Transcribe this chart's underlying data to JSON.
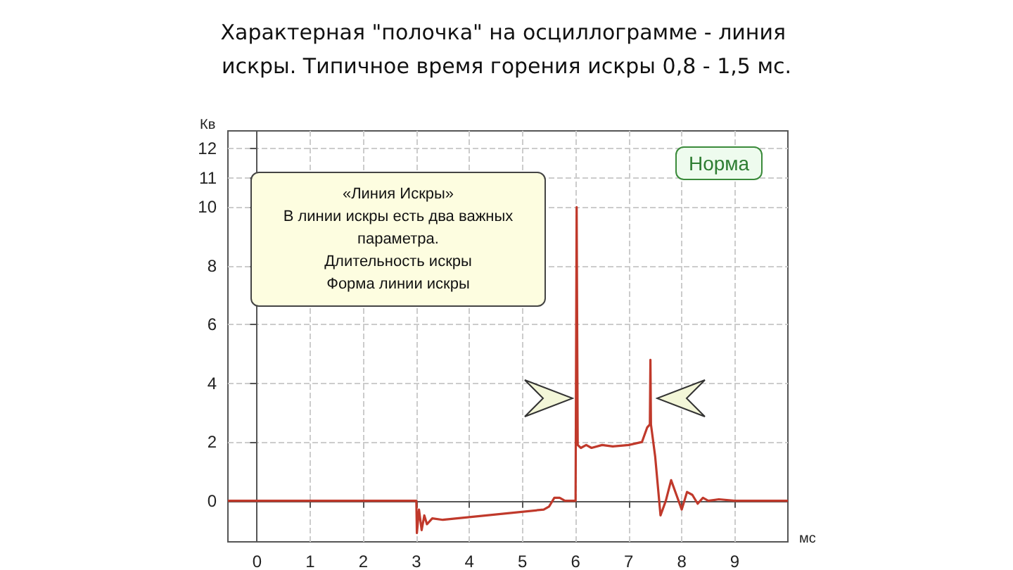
{
  "chart_data": {
    "type": "line",
    "title": "Характерная \"полочка\" на осциллограмме - линия искры. Типичное время горения искры 0,8 - 1,5 мс.",
    "xlabel": "мс",
    "ylabel": "Кв",
    "annotations": [
      "«Линия Искры»\nВ линии искры есть два важных\nпараметра.\nДлительность искры\nФорма линии искры",
      "Норма"
    ],
    "series": [
      {
        "color": "#c0392b",
        "x": [
          -0.55,
          3,
          3.01,
          3.05,
          3.1,
          3.15,
          3.2,
          3.3,
          3.5,
          5.4,
          5.5,
          5.6,
          5.7,
          5.8,
          6.0,
          6.02,
          6.04,
          6.1,
          6.2,
          6.3,
          6.5,
          6.7,
          7.0,
          7.25,
          7.35,
          7.4,
          7.41,
          7.42,
          7.5,
          7.6,
          7.7,
          7.8,
          7.9,
          8.0,
          8.1,
          8.2,
          8.3,
          8.4,
          8.5,
          8.7,
          9,
          10
        ],
        "values": [
          0,
          0,
          -1.1,
          -0.3,
          -1.0,
          -0.5,
          -0.8,
          -0.6,
          -0.65,
          -0.3,
          -0.2,
          0.1,
          0.1,
          0,
          0,
          10,
          1.9,
          1.8,
          1.9,
          1.8,
          1.9,
          1.85,
          1.9,
          2.0,
          2.5,
          2.6,
          4.8,
          2.6,
          1.5,
          -0.5,
          0,
          0.7,
          0.2,
          -0.3,
          0.3,
          0.2,
          -0.1,
          0.1,
          0,
          0.05,
          0,
          0
        ]
      }
    ],
    "xlim": [
      -0.55,
      10
    ],
    "xticks": [
      0,
      1,
      2,
      3,
      4,
      5,
      6,
      7,
      8,
      9
    ],
    "ylim": [
      -1.4,
      12.6
    ],
    "yticks": [
      0,
      2,
      4,
      6,
      8,
      10,
      11,
      12
    ],
    "grid": true,
    "marker": "none",
    "line_style": "solid"
  }
}
